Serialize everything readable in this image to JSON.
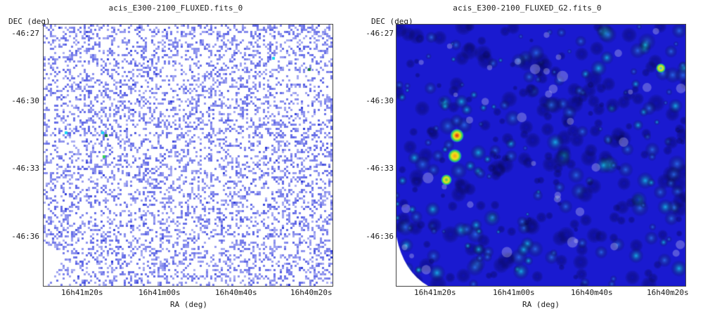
{
  "panels": [
    {
      "title": "acis_E300-2100_FLUXED.fits_0",
      "ylabel": "DEC (deg)",
      "xlabel": "RA (deg)",
      "yticks": [
        "-46:27",
        "-46:30",
        "-46:33",
        "-46:36"
      ],
      "xticks": [
        "16h41m20s",
        "16h41m00s",
        "16h40m40s",
        "16h40m20s"
      ],
      "style": "raw-counts"
    },
    {
      "title": "acis_E300-2100_FLUXED_G2.fits_0",
      "ylabel": "DEC (deg)",
      "xlabel": "RA (deg)",
      "yticks": [
        "-46:27",
        "-46:30",
        "-46:33",
        "-46:36"
      ],
      "xticks": [
        "16h41m20s",
        "16h41m00s",
        "16h40m40s",
        "16h40m20s"
      ],
      "style": "smoothed"
    }
  ],
  "colors": {
    "raw_pixel": "#5b63e6",
    "raw_pixel_bright": "#2a36d8",
    "smooth_low": "#1a1ad0",
    "smooth_mid": "#2e7cf5",
    "smooth_high": "#19d6f2",
    "source_hot": "#e01818",
    "source_warm": "#f2e21a",
    "source_cool": "#34d25a"
  }
}
